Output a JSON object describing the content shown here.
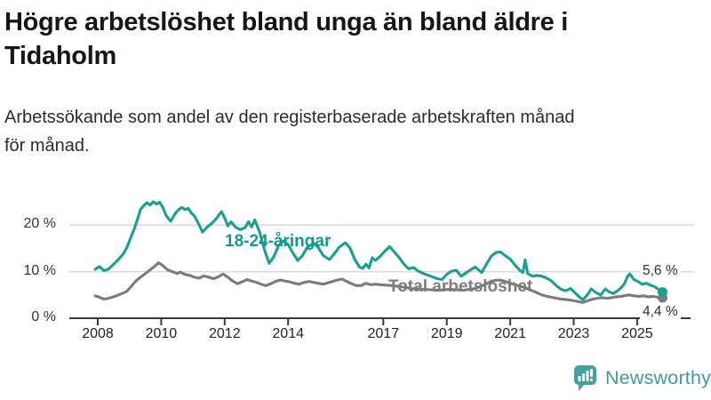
{
  "header": {
    "title_lines": [
      "Högre arbetslöshet bland unga än bland äldre i",
      "Tidaholm"
    ],
    "subtitle_lines": [
      "Arbetssökande som andel av den registerbaserade arbetskraften månad",
      "för månad."
    ]
  },
  "branding": {
    "logo_text": "Newsworthy",
    "logo_color": "#3E9C9B"
  },
  "chart_data": {
    "type": "line",
    "title": "Högre arbetslöshet bland unga än bland äldre i Tidaholm",
    "subtitle": "Arbetssökande som andel av den registerbaserade arbetskraften månad för månad.",
    "unit": "%",
    "grid": "horizontal",
    "legend_position": "inline-labels",
    "xlim": [
      2007.9,
      2026.0
    ],
    "ylim": [
      0,
      27
    ],
    "x_ticks": [
      2008,
      2010,
      2012,
      2014,
      2017,
      2019,
      2021,
      2023,
      2025
    ],
    "x_tick_labels": [
      "2008",
      "2010",
      "2012",
      "2014",
      "2017",
      "2019",
      "2021",
      "2023",
      "2025"
    ],
    "y_ticks": [
      0,
      10,
      20
    ],
    "y_tick_labels": [
      "0 %",
      "10 %",
      "20 %"
    ],
    "axis_color": "#3a3a3a",
    "gridline_color": "#d9d9d9",
    "series": [
      {
        "name": "18-24-åringar",
        "color": "#1B9E93",
        "end_label": "5,6 %",
        "end_value": 5.6,
        "points": [
          [
            2007.92,
            10.5
          ],
          [
            2008.05,
            11.1
          ],
          [
            2008.2,
            10.2
          ],
          [
            2008.35,
            10.6
          ],
          [
            2008.5,
            11.6
          ],
          [
            2008.65,
            12.6
          ],
          [
            2008.8,
            13.8
          ],
          [
            2008.92,
            15.2
          ],
          [
            2009.05,
            17.5
          ],
          [
            2009.15,
            19.2
          ],
          [
            2009.25,
            21.2
          ],
          [
            2009.35,
            23.4
          ],
          [
            2009.45,
            24.2
          ],
          [
            2009.55,
            24.8
          ],
          [
            2009.65,
            24.3
          ],
          [
            2009.75,
            25.0
          ],
          [
            2009.85,
            24.5
          ],
          [
            2009.95,
            24.9
          ],
          [
            2010.05,
            23.8
          ],
          [
            2010.15,
            22.1
          ],
          [
            2010.3,
            20.8
          ],
          [
            2010.45,
            22.6
          ],
          [
            2010.55,
            23.3
          ],
          [
            2010.65,
            23.8
          ],
          [
            2010.75,
            23.3
          ],
          [
            2010.85,
            23.6
          ],
          [
            2010.95,
            22.6
          ],
          [
            2011.05,
            21.9
          ],
          [
            2011.2,
            20.0
          ],
          [
            2011.3,
            18.5
          ],
          [
            2011.45,
            19.6
          ],
          [
            2011.6,
            20.4
          ],
          [
            2011.75,
            21.5
          ],
          [
            2011.9,
            22.9
          ],
          [
            2012.0,
            21.5
          ],
          [
            2012.1,
            19.8
          ],
          [
            2012.2,
            20.7
          ],
          [
            2012.35,
            19.5
          ],
          [
            2012.5,
            19.0
          ],
          [
            2012.65,
            19.5
          ],
          [
            2012.75,
            20.7
          ],
          [
            2012.85,
            19.6
          ],
          [
            2012.95,
            21.1
          ],
          [
            2013.1,
            18.5
          ],
          [
            2013.25,
            14.8
          ],
          [
            2013.4,
            11.8
          ],
          [
            2013.55,
            13.2
          ],
          [
            2013.7,
            15.6
          ],
          [
            2013.85,
            16.6
          ],
          [
            2014.0,
            15.8
          ],
          [
            2014.15,
            14.0
          ],
          [
            2014.3,
            12.4
          ],
          [
            2014.45,
            13.4
          ],
          [
            2014.6,
            15.2
          ],
          [
            2014.8,
            16.1
          ],
          [
            2014.95,
            15.2
          ],
          [
            2015.1,
            13.5
          ],
          [
            2015.3,
            12.6
          ],
          [
            2015.45,
            13.8
          ],
          [
            2015.6,
            15.2
          ],
          [
            2015.8,
            16.2
          ],
          [
            2015.95,
            15.1
          ],
          [
            2016.1,
            12.6
          ],
          [
            2016.25,
            11.0
          ],
          [
            2016.35,
            10.7
          ],
          [
            2016.45,
            11.6
          ],
          [
            2016.55,
            10.8
          ],
          [
            2016.65,
            13.0
          ],
          [
            2016.75,
            12.4
          ],
          [
            2016.9,
            13.3
          ],
          [
            2017.05,
            14.4
          ],
          [
            2017.2,
            15.4
          ],
          [
            2017.35,
            14.2
          ],
          [
            2017.5,
            13.0
          ],
          [
            2017.65,
            11.6
          ],
          [
            2017.8,
            10.6
          ],
          [
            2017.95,
            10.9
          ],
          [
            2018.1,
            10.1
          ],
          [
            2018.3,
            9.5
          ],
          [
            2018.5,
            9.0
          ],
          [
            2018.7,
            8.5
          ],
          [
            2018.85,
            8.3
          ],
          [
            2019.0,
            9.4
          ],
          [
            2019.15,
            10.1
          ],
          [
            2019.3,
            10.3
          ],
          [
            2019.45,
            9.0
          ],
          [
            2019.6,
            9.7
          ],
          [
            2019.75,
            10.4
          ],
          [
            2019.9,
            11.0
          ],
          [
            2020.0,
            10.4
          ],
          [
            2020.1,
            9.8
          ],
          [
            2020.25,
            11.6
          ],
          [
            2020.4,
            13.3
          ],
          [
            2020.55,
            14.1
          ],
          [
            2020.7,
            14.2
          ],
          [
            2020.85,
            13.4
          ],
          [
            2021.0,
            12.7
          ],
          [
            2021.15,
            11.4
          ],
          [
            2021.3,
            10.3
          ],
          [
            2021.4,
            9.8
          ],
          [
            2021.47,
            12.5
          ],
          [
            2021.55,
            9.6
          ],
          [
            2021.7,
            9.0
          ],
          [
            2021.85,
            9.2
          ],
          [
            2022.0,
            9.0
          ],
          [
            2022.15,
            8.6
          ],
          [
            2022.3,
            8.0
          ],
          [
            2022.45,
            7.0
          ],
          [
            2022.6,
            6.2
          ],
          [
            2022.75,
            5.9
          ],
          [
            2022.9,
            6.4
          ],
          [
            2023.05,
            5.4
          ],
          [
            2023.2,
            4.4
          ],
          [
            2023.3,
            4.0
          ],
          [
            2023.45,
            5.2
          ],
          [
            2023.55,
            6.3
          ],
          [
            2023.7,
            5.5
          ],
          [
            2023.85,
            5.0
          ],
          [
            2024.0,
            6.3
          ],
          [
            2024.1,
            5.7
          ],
          [
            2024.25,
            5.3
          ],
          [
            2024.4,
            6.0
          ],
          [
            2024.5,
            6.6
          ],
          [
            2024.6,
            7.4
          ],
          [
            2024.7,
            9.0
          ],
          [
            2024.77,
            9.5
          ],
          [
            2024.9,
            8.3
          ],
          [
            2025.05,
            7.8
          ],
          [
            2025.15,
            7.3
          ],
          [
            2025.3,
            7.5
          ],
          [
            2025.45,
            7.0
          ],
          [
            2025.55,
            6.8
          ],
          [
            2025.65,
            6.3
          ],
          [
            2025.8,
            5.6
          ]
        ]
      },
      {
        "name": "Total arbetslöshet",
        "color": "#7B7B7B",
        "end_label": "4,4 %",
        "end_value": 4.4,
        "points": [
          [
            2007.92,
            4.8
          ],
          [
            2008.05,
            4.5
          ],
          [
            2008.2,
            4.1
          ],
          [
            2008.35,
            4.3
          ],
          [
            2008.5,
            4.6
          ],
          [
            2008.65,
            5.0
          ],
          [
            2008.8,
            5.4
          ],
          [
            2008.92,
            5.8
          ],
          [
            2009.05,
            6.8
          ],
          [
            2009.2,
            8.0
          ],
          [
            2009.35,
            8.8
          ],
          [
            2009.5,
            9.6
          ],
          [
            2009.65,
            10.4
          ],
          [
            2009.8,
            11.2
          ],
          [
            2009.92,
            11.9
          ],
          [
            2010.05,
            11.3
          ],
          [
            2010.2,
            10.4
          ],
          [
            2010.35,
            10.0
          ],
          [
            2010.5,
            9.6
          ],
          [
            2010.6,
            9.9
          ],
          [
            2010.75,
            9.4
          ],
          [
            2010.9,
            9.2
          ],
          [
            2011.05,
            8.8
          ],
          [
            2011.2,
            8.6
          ],
          [
            2011.35,
            9.1
          ],
          [
            2011.5,
            8.8
          ],
          [
            2011.65,
            8.5
          ],
          [
            2011.8,
            8.9
          ],
          [
            2011.95,
            9.5
          ],
          [
            2012.1,
            8.8
          ],
          [
            2012.25,
            8.0
          ],
          [
            2012.4,
            7.4
          ],
          [
            2012.55,
            7.8
          ],
          [
            2012.7,
            8.3
          ],
          [
            2012.85,
            8.0
          ],
          [
            2013.0,
            7.7
          ],
          [
            2013.15,
            7.3
          ],
          [
            2013.3,
            7.0
          ],
          [
            2013.45,
            7.4
          ],
          [
            2013.6,
            7.9
          ],
          [
            2013.75,
            8.2
          ],
          [
            2013.9,
            8.0
          ],
          [
            2014.05,
            7.8
          ],
          [
            2014.2,
            7.5
          ],
          [
            2014.35,
            7.3
          ],
          [
            2014.5,
            7.7
          ],
          [
            2014.65,
            7.9
          ],
          [
            2014.8,
            7.7
          ],
          [
            2014.95,
            7.5
          ],
          [
            2015.1,
            7.3
          ],
          [
            2015.25,
            7.6
          ],
          [
            2015.4,
            7.9
          ],
          [
            2015.55,
            8.2
          ],
          [
            2015.7,
            8.4
          ],
          [
            2015.85,
            7.9
          ],
          [
            2016.0,
            7.4
          ],
          [
            2016.15,
            7.0
          ],
          [
            2016.3,
            7.0
          ],
          [
            2016.45,
            7.5
          ],
          [
            2016.6,
            7.2
          ],
          [
            2016.75,
            7.3
          ],
          [
            2016.9,
            7.2
          ],
          [
            2017.1,
            7.1
          ],
          [
            2017.3,
            7.0
          ],
          [
            2017.5,
            6.8
          ],
          [
            2017.7,
            6.6
          ],
          [
            2017.9,
            6.4
          ],
          [
            2018.1,
            6.3
          ],
          [
            2018.3,
            6.2
          ],
          [
            2018.5,
            6.1
          ],
          [
            2018.7,
            6.0
          ],
          [
            2018.9,
            6.1
          ],
          [
            2019.1,
            6.2
          ],
          [
            2019.3,
            6.1
          ],
          [
            2019.5,
            6.0
          ],
          [
            2019.7,
            6.2
          ],
          [
            2019.9,
            6.4
          ],
          [
            2020.1,
            6.9
          ],
          [
            2020.3,
            7.6
          ],
          [
            2020.5,
            8.1
          ],
          [
            2020.65,
            8.2
          ],
          [
            2020.8,
            8.0
          ],
          [
            2021.0,
            7.5
          ],
          [
            2021.2,
            7.1
          ],
          [
            2021.4,
            6.7
          ],
          [
            2021.6,
            6.2
          ],
          [
            2021.8,
            5.6
          ],
          [
            2022.0,
            5.0
          ],
          [
            2022.15,
            4.7
          ],
          [
            2022.3,
            4.5
          ],
          [
            2022.45,
            4.3
          ],
          [
            2022.6,
            4.1
          ],
          [
            2022.75,
            4.0
          ],
          [
            2022.9,
            3.9
          ],
          [
            2023.05,
            3.7
          ],
          [
            2023.2,
            3.5
          ],
          [
            2023.3,
            3.4
          ],
          [
            2023.45,
            3.8
          ],
          [
            2023.6,
            4.1
          ],
          [
            2023.75,
            4.3
          ],
          [
            2023.9,
            4.4
          ],
          [
            2024.05,
            4.3
          ],
          [
            2024.2,
            4.4
          ],
          [
            2024.35,
            4.6
          ],
          [
            2024.5,
            4.7
          ],
          [
            2024.65,
            4.9
          ],
          [
            2024.75,
            5.0
          ],
          [
            2024.9,
            4.8
          ],
          [
            2025.05,
            4.7
          ],
          [
            2025.2,
            4.8
          ],
          [
            2025.35,
            4.6
          ],
          [
            2025.5,
            4.7
          ],
          [
            2025.65,
            4.5
          ],
          [
            2025.8,
            4.4
          ]
        ]
      }
    ]
  }
}
